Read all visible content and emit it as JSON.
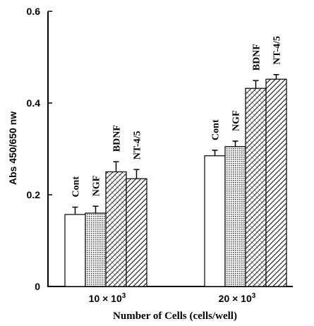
{
  "chart_data": {
    "type": "bar",
    "ylabel": "Abs 450/650 nw",
    "xlabel": "Number of Cells (cells/well)",
    "ylim": [
      0,
      0.6
    ],
    "yticks": [
      "0",
      "0.2",
      "0.4",
      "0.6"
    ],
    "groups": [
      {
        "label_base": "10 × 10",
        "label_exp": "3"
      },
      {
        "label_base": "20 × 10",
        "label_exp": "3"
      }
    ],
    "bar_labels": [
      "Cont",
      "NGF",
      "BDNF",
      "NT-4/5"
    ],
    "series": [
      {
        "name": "Cont",
        "values": [
          0.157,
          0.285
        ],
        "errors": [
          0.016,
          0.012
        ],
        "fill": "white"
      },
      {
        "name": "NGF",
        "values": [
          0.16,
          0.305
        ],
        "errors": [
          0.015,
          0.012
        ],
        "fill": "dots"
      },
      {
        "name": "BDNF",
        "values": [
          0.25,
          0.432
        ],
        "errors": [
          0.022,
          0.017
        ],
        "fill": "hatch-cross"
      },
      {
        "name": "NT-4/5",
        "values": [
          0.235,
          0.452
        ],
        "errors": [
          0.02,
          0.01
        ],
        "fill": "hatch"
      }
    ],
    "grid": false
  }
}
